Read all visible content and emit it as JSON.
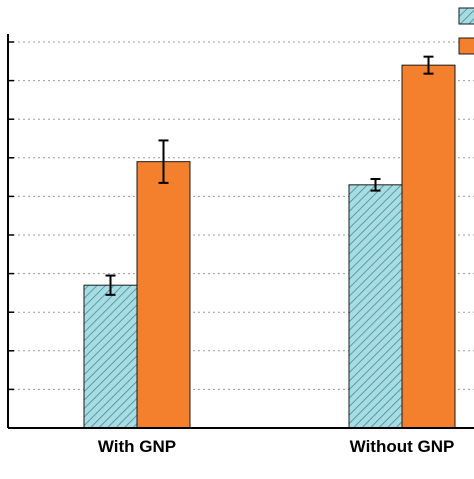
{
  "chart_data": {
    "type": "bar",
    "title": "",
    "xlabel": "",
    "ylabel": "",
    "categories": [
      "With GNP",
      "Without GNP"
    ],
    "ylim": [
      0,
      10
    ],
    "grid": true,
    "legend": "top-right",
    "series": [
      {
        "name": "",
        "color": "#9fd4dc",
        "hatch": true,
        "values": [
          3.7,
          6.3
        ],
        "errors": [
          0.25,
          0.15
        ]
      },
      {
        "name": "",
        "color": "#f47f2c",
        "hatch": false,
        "values": [
          6.9,
          9.4
        ],
        "errors": [
          0.55,
          0.22
        ]
      }
    ]
  }
}
